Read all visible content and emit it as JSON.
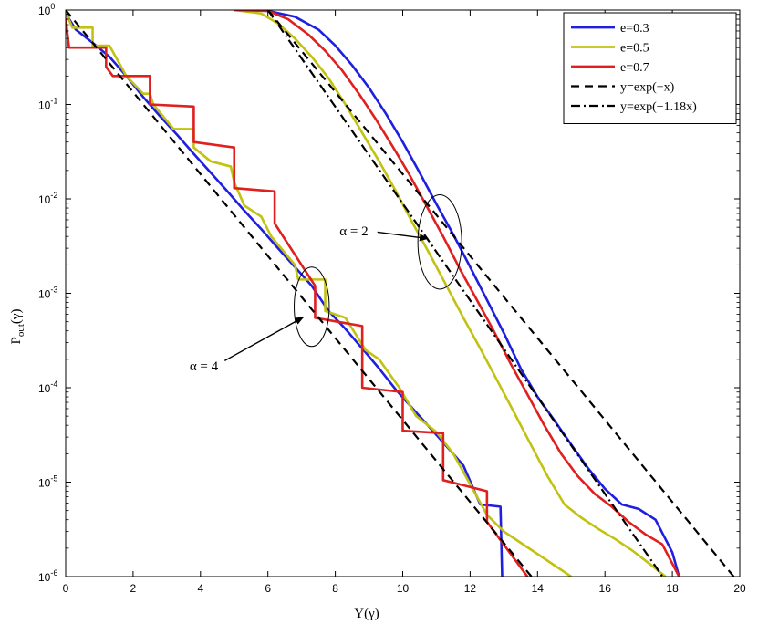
{
  "chart_data": {
    "type": "line",
    "title": "",
    "xlabel": "Y(γ)",
    "ylabel_main": "P",
    "ylabel_sub": "out",
    "ylabel_tail": "(γ)",
    "xlim": [
      0,
      20
    ],
    "ylim": [
      1e-06,
      1
    ],
    "yscale": "log",
    "grid": false,
    "legend_position": "top-right",
    "x_ticks": [
      "0",
      "2",
      "4",
      "6",
      "8",
      "10",
      "12",
      "14",
      "16",
      "18",
      "20"
    ],
    "y_ticks": [
      {
        "base": "10",
        "exp": "0"
      },
      {
        "base": "10",
        "exp": "-1"
      },
      {
        "base": "10",
        "exp": "-2"
      },
      {
        "base": "10",
        "exp": "-3"
      },
      {
        "base": "10",
        "exp": "-4"
      },
      {
        "base": "10",
        "exp": "-5"
      },
      {
        "base": "10",
        "exp": "-6"
      }
    ],
    "series": [
      {
        "name": "e=0.3",
        "color": "#1f1fe0",
        "dash": "solid",
        "groups": [
          [
            [
              0,
              0.92
            ],
            [
              0.3,
              0.62
            ],
            [
              0.8,
              0.45
            ],
            [
              1.3,
              0.32
            ],
            [
              1.8,
              0.2
            ],
            [
              2.3,
              0.12
            ],
            [
              2.8,
              0.075
            ],
            [
              3.3,
              0.048
            ],
            [
              3.8,
              0.03
            ],
            [
              4.3,
              0.019
            ],
            [
              4.8,
              0.012
            ],
            [
              5.3,
              0.0075
            ],
            [
              5.8,
              0.0048
            ],
            [
              6.3,
              0.003
            ],
            [
              6.8,
              0.0019
            ],
            [
              7.3,
              0.0012
            ],
            [
              7.8,
              0.00065
            ],
            [
              8.3,
              0.00042
            ],
            [
              8.8,
              0.00026
            ],
            [
              9.3,
              0.00016
            ],
            [
              9.8,
              9.5e-05
            ],
            [
              10.3,
              6e-05
            ],
            [
              10.8,
              3.8e-05
            ],
            [
              11.3,
              2.4e-05
            ],
            [
              11.8,
              1.5e-05
            ],
            [
              12.3,
              5.8e-06
            ],
            [
              12.9,
              5.5e-06
            ],
            [
              12.95,
              1e-06
            ]
          ],
          [
            [
              5,
              1
            ],
            [
              6,
              0.98
            ],
            [
              6.8,
              0.85
            ],
            [
              7.5,
              0.62
            ],
            [
              8,
              0.42
            ],
            [
              8.5,
              0.26
            ],
            [
              9,
              0.15
            ],
            [
              9.5,
              0.08
            ],
            [
              10,
              0.04
            ],
            [
              10.5,
              0.019
            ],
            [
              11,
              0.0088
            ],
            [
              11.5,
              0.0042
            ],
            [
              12,
              0.0019
            ],
            [
              12.5,
              0.00085
            ],
            [
              13,
              0.00038
            ],
            [
              13.5,
              0.00016
            ],
            [
              14,
              8e-05
            ],
            [
              14.5,
              4.5e-05
            ],
            [
              15,
              2.5e-05
            ],
            [
              15.5,
              1.4e-05
            ],
            [
              16,
              8.5e-06
            ],
            [
              16.5,
              5.8e-06
            ],
            [
              17,
              5.2e-06
            ],
            [
              17.5,
              4e-06
            ],
            [
              18,
              1.8e-06
            ],
            [
              18.2,
              1e-06
            ]
          ]
        ]
      },
      {
        "name": "e=0.5",
        "color": "#c2c212",
        "dash": "solid",
        "groups": [
          [
            [
              0,
              0.95
            ],
            [
              0.2,
              0.65
            ],
            [
              0.8,
              0.65
            ],
            [
              0.8,
              0.42
            ],
            [
              1.3,
              0.42
            ],
            [
              1.3,
              0.42
            ],
            [
              1.8,
              0.2
            ],
            [
              2.3,
              0.13
            ],
            [
              2.5,
              0.13
            ],
            [
              2.6,
              0.1
            ],
            [
              3.2,
              0.055
            ],
            [
              3.8,
              0.055
            ],
            [
              3.8,
              0.035
            ],
            [
              4.3,
              0.025
            ],
            [
              4.9,
              0.022
            ],
            [
              5,
              0.015
            ],
            [
              5.3,
              0.0085
            ],
            [
              5.8,
              0.0065
            ],
            [
              6.1,
              0.004
            ],
            [
              6.8,
              0.002
            ],
            [
              6.9,
              0.0014
            ],
            [
              7.7,
              0.0014
            ],
            [
              7.7,
              0.00065
            ],
            [
              8.3,
              0.00055
            ],
            [
              8.9,
              0.00025
            ],
            [
              9.3,
              0.0002
            ],
            [
              9.9,
              0.0001
            ],
            [
              10.4,
              5e-05
            ],
            [
              11,
              3.4e-05
            ],
            [
              11.5,
              2e-05
            ],
            [
              12,
              9.5e-06
            ],
            [
              12.5,
              4.5e-06
            ],
            [
              13,
              3e-06
            ],
            [
              15,
              1e-06
            ]
          ],
          [
            [
              5,
              1
            ],
            [
              5.8,
              0.92
            ],
            [
              6.3,
              0.72
            ],
            [
              6.8,
              0.5
            ],
            [
              7.3,
              0.32
            ],
            [
              7.8,
              0.19
            ],
            [
              8.3,
              0.1
            ],
            [
              8.8,
              0.05
            ],
            [
              9.3,
              0.025
            ],
            [
              9.8,
              0.012
            ],
            [
              10.3,
              0.0055
            ],
            [
              10.8,
              0.0026
            ],
            [
              11.3,
              0.0012
            ],
            [
              11.8,
              0.00055
            ],
            [
              12.3,
              0.00026
            ],
            [
              12.8,
              0.00012
            ],
            [
              13.3,
              5.5e-05
            ],
            [
              13.8,
              2.5e-05
            ],
            [
              14.3,
              1.15e-05
            ],
            [
              14.8,
              5.8e-06
            ],
            [
              15.3,
              4.2e-06
            ],
            [
              15.8,
              3.2e-06
            ],
            [
              16.3,
              2.5e-06
            ],
            [
              16.8,
              1.9e-06
            ],
            [
              17.4,
              1.3e-06
            ],
            [
              17.8,
              1e-06
            ]
          ]
        ]
      },
      {
        "name": "e=0.7",
        "color": "#e01f1f",
        "dash": "solid",
        "groups": [
          [
            [
              0,
              0.82
            ],
            [
              0.1,
              0.4
            ],
            [
              1.2,
              0.4
            ],
            [
              1.2,
              0.25
            ],
            [
              1.4,
              0.2
            ],
            [
              2.5,
              0.2
            ],
            [
              2.5,
              0.1
            ],
            [
              3.8,
              0.095
            ],
            [
              3.8,
              0.04
            ],
            [
              5,
              0.035
            ],
            [
              5,
              0.013
            ],
            [
              6.2,
              0.012
            ],
            [
              6.2,
              0.0055
            ],
            [
              7.4,
              0.0012
            ],
            [
              7.4,
              0.00055
            ],
            [
              8.8,
              0.00045
            ],
            [
              8.8,
              0.0001
            ],
            [
              10,
              9e-05
            ],
            [
              10,
              3.5e-05
            ],
            [
              11.2,
              3.3e-05
            ],
            [
              11.2,
              1.05e-05
            ],
            [
              12.5,
              8e-06
            ],
            [
              12.5,
              3.8e-06
            ],
            [
              13.7,
              1e-06
            ]
          ],
          [
            [
              5,
              1
            ],
            [
              6,
              0.98
            ],
            [
              6.6,
              0.8
            ],
            [
              7.2,
              0.55
            ],
            [
              7.7,
              0.37
            ],
            [
              8.2,
              0.23
            ],
            [
              8.7,
              0.13
            ],
            [
              9.2,
              0.07
            ],
            [
              9.7,
              0.036
            ],
            [
              10.2,
              0.018
            ],
            [
              10.7,
              0.0085
            ],
            [
              11.2,
              0.004
            ],
            [
              11.7,
              0.0018
            ],
            [
              12.2,
              0.00085
            ],
            [
              12.7,
              0.0004
            ],
            [
              13.2,
              0.00018
            ],
            [
              13.7,
              8.5e-05
            ],
            [
              14.2,
              4e-05
            ],
            [
              14.7,
              2e-05
            ],
            [
              15.2,
              1.15e-05
            ],
            [
              15.7,
              7.5e-06
            ],
            [
              16.2,
              5.5e-06
            ],
            [
              16.7,
              3.8e-06
            ],
            [
              17.2,
              2.8e-06
            ],
            [
              17.7,
              2.2e-06
            ],
            [
              18.2,
              1e-06
            ]
          ]
        ]
      },
      {
        "name": "y=exp(−x)",
        "color": "#000000",
        "dash": "dashed",
        "groups": [
          [
            [
              0,
              1
            ],
            [
              13.82,
              1e-06
            ]
          ],
          [
            [
              6,
              1
            ],
            [
              19.82,
              1e-06
            ]
          ]
        ]
      },
      {
        "name": "y=exp(−1.18x)",
        "color": "#000000",
        "dash": "dashdot",
        "groups": [
          [
            [
              6,
              1
            ],
            [
              17.71,
              1e-06
            ]
          ]
        ]
      }
    ],
    "annotations": [
      {
        "text": "α = 2",
        "target_x": 11.1,
        "target_y": 0.0035,
        "text_x": 8.55,
        "text_y": 0.0046,
        "ellipse_rx": 0.65,
        "ellipse_decades": 0.5
      },
      {
        "text": "α = 4",
        "target_x": 7.3,
        "target_y": 0.00072,
        "text_x": 4.1,
        "text_y": 0.00017,
        "ellipse_rx": 0.52,
        "ellipse_decades": 0.42
      }
    ]
  }
}
